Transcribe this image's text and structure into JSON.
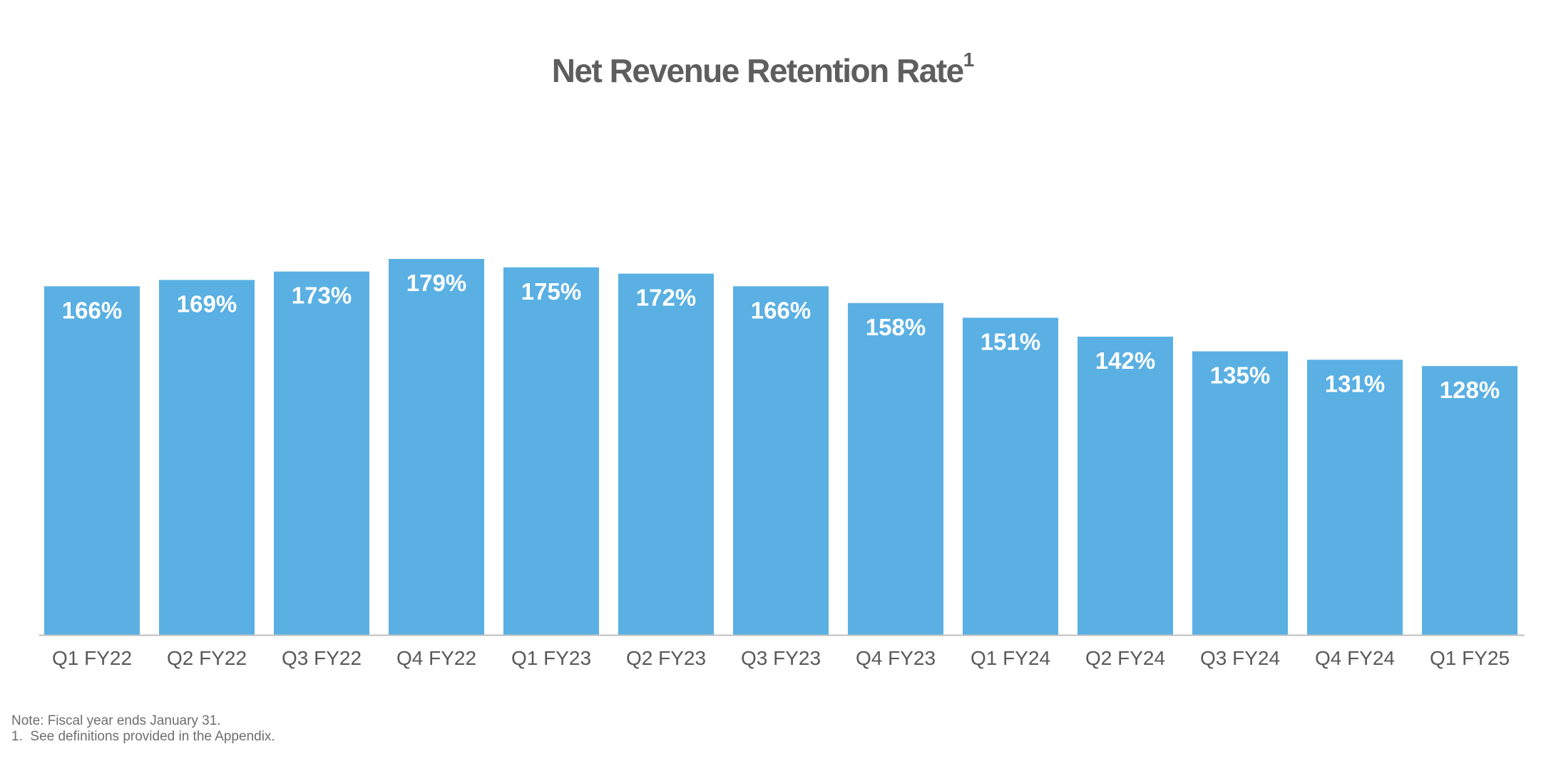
{
  "title": {
    "text": "Net Revenue Retention Rate",
    "superscript": "1"
  },
  "footnotes": {
    "note": "Note: Fiscal year ends January 31.",
    "definition": "1.  See definitions provided in the Appendix."
  },
  "colors": {
    "bar": "#5ab0e3",
    "bar_label": "#ffffff",
    "title": "#5e5e5e",
    "axis_label": "#595959",
    "baseline": "#bfbfbf"
  },
  "chart_data": {
    "type": "bar",
    "title": "Net Revenue Retention Rate",
    "xlabel": "",
    "ylabel": "",
    "categories": [
      "Q1 FY22",
      "Q2 FY22",
      "Q3 FY22",
      "Q4 FY22",
      "Q1 FY23",
      "Q2 FY23",
      "Q3 FY23",
      "Q4 FY23",
      "Q1 FY24",
      "Q2 FY24",
      "Q3 FY24",
      "Q4 FY24",
      "Q1 FY25"
    ],
    "values": [
      166,
      169,
      173,
      179,
      175,
      172,
      166,
      158,
      151,
      142,
      135,
      131,
      128
    ],
    "data_labels": [
      "166%",
      "169%",
      "173%",
      "179%",
      "175%",
      "172%",
      "166%",
      "158%",
      "151%",
      "142%",
      "135%",
      "131%",
      "128%"
    ],
    "ylim": [
      0,
      179
    ],
    "grid": false,
    "legend": "none"
  }
}
